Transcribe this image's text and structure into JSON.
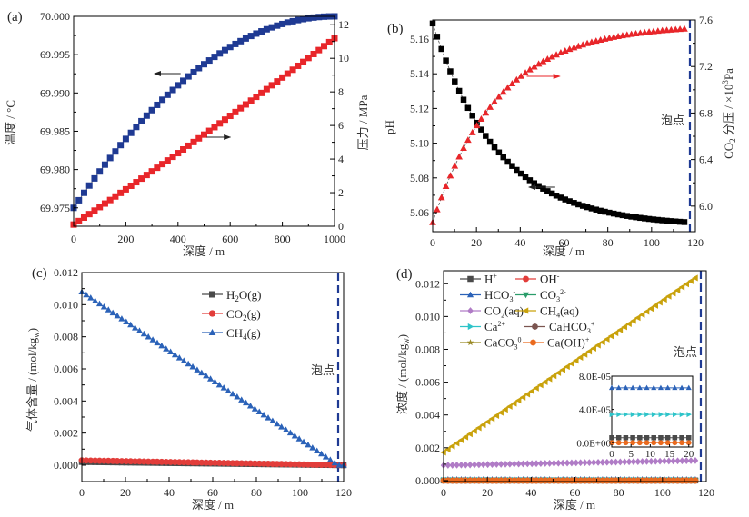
{
  "chart_data": [
    {
      "panel": "(a)",
      "type": "scatter",
      "xlabel": "深度 / m",
      "ylabel_left": "温度 / °C",
      "ylabel_right": "压力 / MPa",
      "xlim": [
        0,
        1000
      ],
      "ylim_left": [
        69.9726,
        70.0
      ],
      "ylim_right": [
        0,
        12.5
      ],
      "xticks": [
        0,
        200,
        400,
        600,
        800,
        1000
      ],
      "yticks_left": [
        "69.975",
        "69.980",
        "69.985",
        "69.990",
        "69.995",
        "70.000"
      ],
      "yticks_right": [
        0,
        2,
        4,
        6,
        8,
        10,
        12
      ],
      "series": [
        {
          "name": "温度",
          "axis": "left",
          "color": "#1f3a93",
          "marker": "square",
          "x_start": 0,
          "x_end": 1000,
          "n": 51,
          "model": "quadratic-saturating",
          "y_start": 69.975,
          "y_end": 70.0
        },
        {
          "name": "压力",
          "axis": "right",
          "color": "#e8262a",
          "marker": "square",
          "x_start": 0,
          "x_end": 1000,
          "n": 51,
          "model": "linear-slight-curve",
          "y_start": 0.1,
          "y_end": 11.2
        }
      ],
      "arrows": [
        {
          "direction": "left",
          "at_x": 400,
          "at_y_left": 69.992,
          "color": "#222"
        },
        {
          "direction": "right",
          "at_x": 520,
          "at_y_left": 69.984,
          "color": "#222"
        }
      ]
    },
    {
      "panel": "(b)",
      "type": "scatter",
      "xlabel": "深度 / m",
      "ylabel_left": "pH",
      "ylabel_right": "CO2 分压 / ×10³Pa",
      "xlim": [
        0,
        120
      ],
      "ylim_left": [
        5.049,
        5.171
      ],
      "ylim_right": [
        5.78,
        7.6
      ],
      "xticks": [
        0,
        20,
        40,
        60,
        80,
        100,
        120
      ],
      "yticks_left": [
        "5.06",
        "5.08",
        "5.10",
        "5.12",
        "5.14",
        "5.16"
      ],
      "yticks_right": [
        "6.0",
        "6.4",
        "6.8",
        "7.2",
        "7.6"
      ],
      "bubble_point": {
        "x": 117.5,
        "label": "泡点",
        "color": "#1f3a93"
      },
      "series": [
        {
          "name": "pH",
          "axis": "left",
          "color": "#000000",
          "marker": "square",
          "x_start": 0,
          "x_end": 115,
          "n": 58,
          "model": "exp-decay",
          "y_start": 5.169,
          "y_end": 5.057,
          "y_inf": 5.052,
          "tau": 30
        },
        {
          "name": "CO2 分压",
          "axis": "right",
          "color": "#e8262a",
          "marker": "triangle-up",
          "x_start": 0,
          "x_end": 115,
          "n": 58,
          "model": "exp-rise",
          "y_start": 5.86,
          "y_end": 7.49,
          "y_inf": 7.56,
          "tau": 30
        }
      ],
      "arrows": [
        {
          "direction": "right",
          "at_x": 45,
          "at_y_right": 7.12,
          "color": "#e8262a"
        },
        {
          "direction": "left",
          "at_x": 45,
          "at_y_left": 5.071,
          "color": "#222"
        }
      ]
    },
    {
      "panel": "(c)",
      "type": "scatter",
      "xlabel": "深度 / m",
      "ylabel": "气体含量 / (mol/kgw)",
      "xlim": [
        0,
        120
      ],
      "ylim": [
        -0.00102,
        0.012
      ],
      "xticks": [
        0,
        20,
        40,
        60,
        80,
        100,
        120
      ],
      "yticks": [
        "0.000",
        "0.002",
        "0.004",
        "0.006",
        "0.008",
        "0.010",
        "0.012"
      ],
      "bubble_point": {
        "x": 117.5,
        "label": "泡点",
        "color": "#1f3a93"
      },
      "legend": {
        "placement": "top-center"
      },
      "series": [
        {
          "name": "H2O(g)",
          "label_main": "H",
          "sub": "2",
          "label_rest": "O(g)",
          "color": "#4a4a4a",
          "marker": "square",
          "x_start": 0,
          "x_end": 120,
          "n": 60,
          "model": "linear",
          "y_start": 0.0002,
          "y_end": 0.0
        },
        {
          "name": "CO2(g)",
          "label_main": "CO",
          "sub": "2",
          "label_rest": "(g)",
          "color": "#e23d3a",
          "marker": "circle",
          "x_start": 0,
          "x_end": 120,
          "n": 60,
          "model": "linear",
          "y_start": 0.0003,
          "y_end": 0.0
        },
        {
          "name": "CH4(g)",
          "label_main": "CH",
          "sub": "4",
          "label_rest": "(g)",
          "color": "#2b62b8",
          "marker": "triangle-up",
          "x_start": 0,
          "x_end": 120,
          "n": 60,
          "model": "linear-to-zero",
          "y_start": 0.0108,
          "y_zero_at": 117.5
        }
      ]
    },
    {
      "panel": "(d)",
      "type": "scatter",
      "xlabel": "深度 / m",
      "ylabel": "浓度 / (mol/kgw)",
      "xlim": [
        0,
        120
      ],
      "ylim": [
        -6e-05,
        0.01279
      ],
      "xticks": [
        0,
        20,
        40,
        60,
        80,
        100,
        120
      ],
      "yticks": [
        "0.000",
        "0.002",
        "0.004",
        "0.006",
        "0.008",
        "0.010",
        "0.012"
      ],
      "bubble_point": {
        "x": 117.5,
        "label": "泡点",
        "color": "#1f3a93"
      },
      "legend": {
        "placement": "top-left",
        "columns": 2
      },
      "series": [
        {
          "name": "H+",
          "label_main": "H",
          "sup": "+",
          "color": "#4a4a4a",
          "marker": "square",
          "y_start": 6e-06,
          "y_end": 6e-06
        },
        {
          "name": "OH-",
          "label_main": "OH",
          "sup": "-",
          "color": "#e23d3a",
          "marker": "circle",
          "y_start": 0.0,
          "y_end": 0.0
        },
        {
          "name": "HCO3-",
          "label_main": "HCO",
          "sub": "3",
          "sup": "-",
          "color": "#2b62b8",
          "marker": "triangle-up",
          "y_start": 6.6e-05,
          "y_end": 6.6e-05
        },
        {
          "name": "CO3 2-",
          "label_main": "CO",
          "sub": "3",
          "sup": "2-",
          "color": "#2a9d6a",
          "marker": "triangle-down",
          "y_start": 0.0,
          "y_end": 0.0
        },
        {
          "name": "CO2(aq)",
          "label_main": "CO",
          "sub": "2",
          "label_rest": "(aq)",
          "color": "#b07cc6",
          "marker": "diamond",
          "y_start": 0.00093,
          "y_end": 0.00122
        },
        {
          "name": "CH4(aq)",
          "label_main": "CH",
          "sub": "4",
          "label_rest": "(aq)",
          "color": "#c9a20c",
          "marker": "triangle-left",
          "y_start": 0.00172,
          "y_end": 0.01235
        },
        {
          "name": "Ca2+",
          "label_main": "Ca",
          "sup": "2+",
          "color": "#2ec4c9",
          "marker": "triangle-right",
          "y_start": 3.4e-05,
          "y_end": 3.4e-05
        },
        {
          "name": "CaHCO3+",
          "label_main": "CaHCO",
          "sub": "3",
          "sup": "+",
          "color": "#7b5550",
          "marker": "circle",
          "y_start": 5e-07,
          "y_end": 5e-07
        },
        {
          "name": "CaCO3 0",
          "label_main": "CaCO",
          "sub": "3",
          "sup": "0",
          "color": "#9a8a26",
          "marker": "star",
          "y_start": 0.0,
          "y_end": 0.0
        },
        {
          "name": "Ca(OH)+",
          "label_main": "Ca(OH)",
          "sup": "+",
          "color": "#ea6a1e",
          "marker": "circle",
          "y_start": 0.0,
          "y_end": 0.0
        }
      ],
      "x_start": 0,
      "x_end": 115,
      "n": 58,
      "inset": {
        "xlim": [
          0,
          21
        ],
        "ylim": [
          0.0,
          8e-05
        ],
        "xticks": [
          0,
          5,
          10,
          15,
          20
        ],
        "yticks": [
          "0.0E+00",
          "4.0E-05",
          "8.0E-05"
        ],
        "yticks_values": [
          0,
          4e-05,
          8e-05
        ],
        "series_shown": [
          "HCO3-",
          "Ca2+",
          "H+",
          "Ca(OH)+"
        ],
        "n": 12,
        "x_end": 20
      }
    }
  ]
}
